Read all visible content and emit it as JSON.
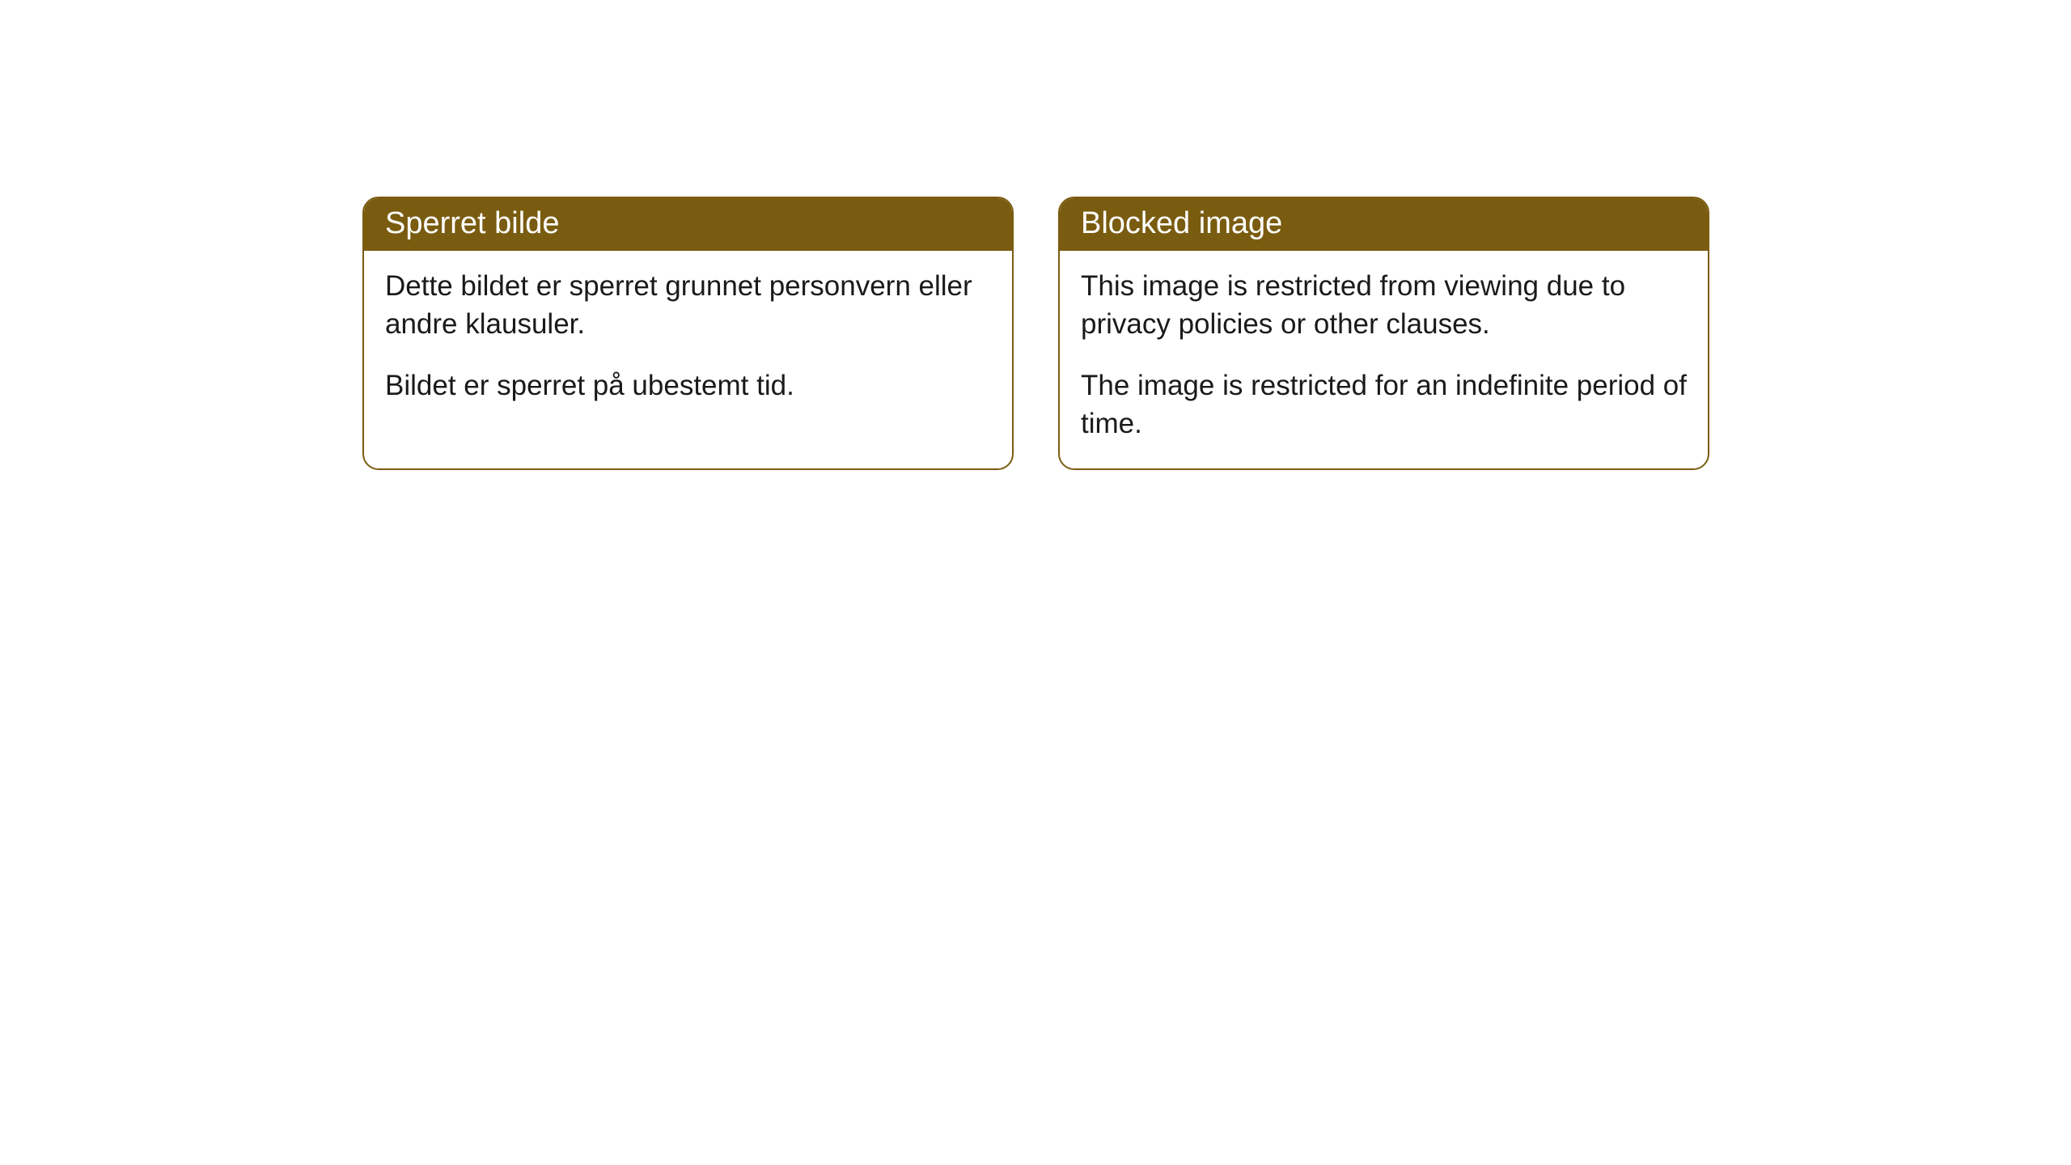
{
  "cards": [
    {
      "header": "Sperret bilde",
      "paragraph1": "Dette bildet er sperret grunnet personvern eller andre klausuler.",
      "paragraph2": "Bildet er sperret på ubestemt tid."
    },
    {
      "header": "Blocked image",
      "paragraph1": "This image is restricted from viewing due to privacy policies or other clauses.",
      "paragraph2": "The image is restricted for an indefinite period of time."
    }
  ],
  "style": {
    "header_bg_color": "#7a5c10",
    "header_text_color": "#ffffff",
    "border_color": "#7a5c10",
    "body_bg_color": "#ffffff",
    "body_text_color": "#1a1a1a",
    "border_radius": 20,
    "header_fontsize": 38,
    "body_fontsize": 35
  }
}
